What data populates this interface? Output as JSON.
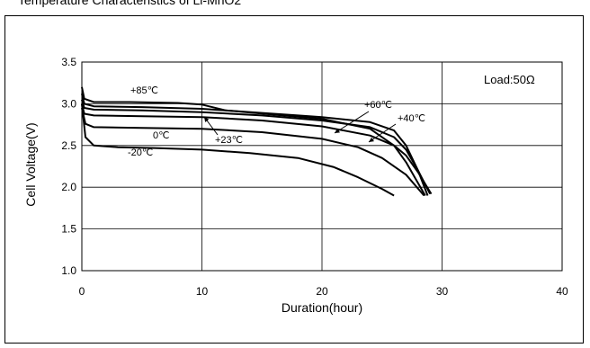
{
  "caption": "Temperature Characteristics of Li-MnO2",
  "chart_data": {
    "type": "line",
    "title": "",
    "xlabel": "Duration(hour)",
    "ylabel": "Cell Voltage(V)",
    "xlim": [
      0,
      40
    ],
    "ylim": [
      1.0,
      3.5
    ],
    "xticks": [
      0,
      10,
      20,
      30,
      40
    ],
    "yticks": [
      1.0,
      1.5,
      2.0,
      2.5,
      3.0,
      3.5
    ],
    "xtick_labels": [
      "0",
      "10",
      "20",
      "30",
      "40"
    ],
    "ytick_labels": [
      "1.0",
      "1.5",
      "2.0",
      "2.5",
      "3.0",
      "3.5"
    ],
    "grid": true,
    "legend_note": "Load:50Ω",
    "line_color": "#000000",
    "series": [
      {
        "name": "+85℃",
        "x": [
          0,
          0.2,
          1,
          4,
          8,
          10,
          12,
          16,
          20,
          24,
          26,
          27,
          28,
          28.6
        ],
        "y": [
          3.2,
          3.06,
          3.02,
          3.02,
          3.01,
          2.99,
          2.92,
          2.87,
          2.82,
          2.7,
          2.5,
          2.3,
          2.05,
          1.9
        ]
      },
      {
        "name": "+60℃",
        "x": [
          0,
          0.2,
          1,
          5,
          10,
          15,
          20,
          24,
          26,
          27,
          28,
          28.8
        ],
        "y": [
          3.12,
          3.0,
          2.97,
          2.96,
          2.94,
          2.89,
          2.84,
          2.78,
          2.68,
          2.5,
          2.2,
          1.9
        ]
      },
      {
        "name": "+40℃",
        "x": [
          0,
          0.2,
          1,
          5,
          10,
          15,
          20,
          24,
          26,
          27,
          28,
          29
        ],
        "y": [
          3.05,
          2.95,
          2.93,
          2.92,
          2.9,
          2.86,
          2.8,
          2.72,
          2.6,
          2.45,
          2.2,
          1.92
        ]
      },
      {
        "name": "+23℃",
        "x": [
          0,
          0.2,
          1,
          5,
          10,
          15,
          20,
          24,
          26,
          27,
          28,
          29.1
        ],
        "y": [
          3.0,
          2.88,
          2.86,
          2.85,
          2.84,
          2.8,
          2.73,
          2.62,
          2.5,
          2.38,
          2.18,
          1.92
        ]
      },
      {
        "name": "0℃",
        "x": [
          0,
          0.3,
          1,
          5,
          10,
          15,
          20,
          23,
          25,
          27,
          28.5
        ],
        "y": [
          2.95,
          2.76,
          2.72,
          2.71,
          2.7,
          2.66,
          2.58,
          2.48,
          2.35,
          2.15,
          1.9
        ]
      },
      {
        "name": "-20℃",
        "x": [
          0,
          0.3,
          1,
          3,
          6,
          10,
          14,
          18,
          21,
          23,
          25,
          26
        ],
        "y": [
          3.0,
          2.6,
          2.5,
          2.48,
          2.47,
          2.45,
          2.41,
          2.35,
          2.24,
          2.12,
          1.98,
          1.9
        ]
      }
    ],
    "annotations": [
      {
        "text": "+85℃",
        "series": "+85℃"
      },
      {
        "text": "+60℃",
        "series": "+60℃"
      },
      {
        "text": "+40℃",
        "series": "+40℃"
      },
      {
        "text": "+23℃",
        "series": "+23℃"
      },
      {
        "text": "0℃",
        "series": "0℃"
      },
      {
        "text": "-20℃",
        "series": "-20℃"
      }
    ]
  }
}
